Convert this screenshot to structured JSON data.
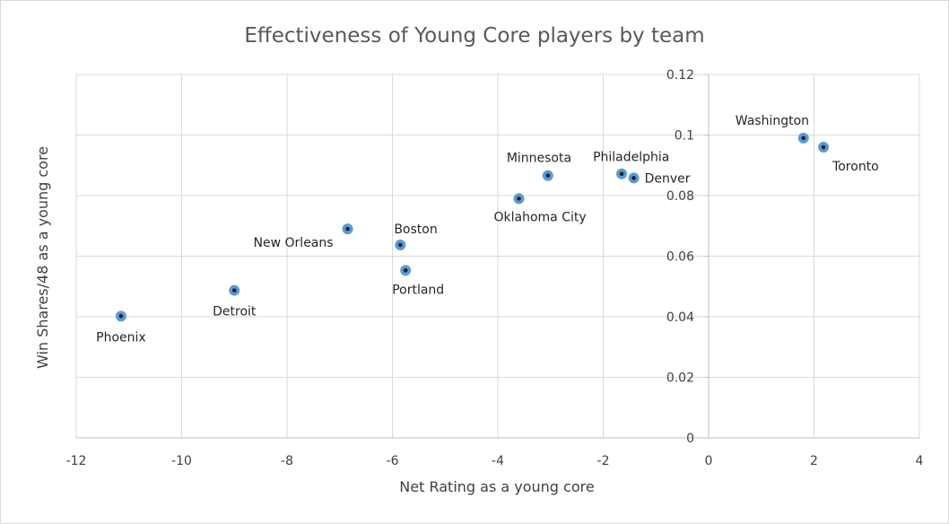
{
  "chart_data": {
    "type": "scatter",
    "title": "Effectiveness of Young Core players by team",
    "xlabel": "Net Rating as a young core",
    "ylabel": "Win Shares/48 as a young core",
    "xlim": [
      -12,
      4
    ],
    "ylim": [
      0,
      0.12
    ],
    "x_ticks": [
      -12,
      -10,
      -8,
      -6,
      -4,
      -2,
      0,
      2,
      4
    ],
    "y_ticks": [
      0,
      0.02,
      0.04,
      0.06,
      0.08,
      0.1,
      0.12
    ],
    "x_tick_labels": [
      "-12",
      "-10",
      "-8",
      "-6",
      "-4",
      "-2",
      "0",
      "2",
      "4"
    ],
    "y_tick_labels": [
      "0",
      "0.02",
      "0.04",
      "0.06",
      "0.08",
      "0.1",
      "0.12"
    ],
    "grid": true,
    "marker_color": "#5b9bd5",
    "marker_center_color": "#1f1f1f",
    "points": [
      {
        "label": "Phoenix",
        "x": -11.15,
        "y": 0.0402,
        "label_pos": "below"
      },
      {
        "label": "Detroit",
        "x": -9.0,
        "y": 0.0487,
        "label_pos": "below"
      },
      {
        "label": "New Orleans",
        "x": -6.85,
        "y": 0.069,
        "label_pos": "below-left"
      },
      {
        "label": "Boston",
        "x": -5.85,
        "y": 0.0637,
        "label_pos": "above-right"
      },
      {
        "label": "Portland",
        "x": -5.75,
        "y": 0.0553,
        "label_pos": "below-right"
      },
      {
        "label": "Oklahoma City",
        "x": -3.6,
        "y": 0.079,
        "label_pos": "below-right"
      },
      {
        "label": "Minnesota",
        "x": -3.05,
        "y": 0.0866,
        "label_pos": "above-left"
      },
      {
        "label": "Philadelphia",
        "x": -1.65,
        "y": 0.0872,
        "label_pos": "above-right"
      },
      {
        "label": "Denver",
        "x": -1.42,
        "y": 0.0858,
        "label_pos": "right"
      },
      {
        "label": "Washington",
        "x": 1.8,
        "y": 0.099,
        "label_pos": "above-left"
      },
      {
        "label": "Toronto",
        "x": 2.18,
        "y": 0.096,
        "label_pos": "below-right"
      }
    ]
  }
}
